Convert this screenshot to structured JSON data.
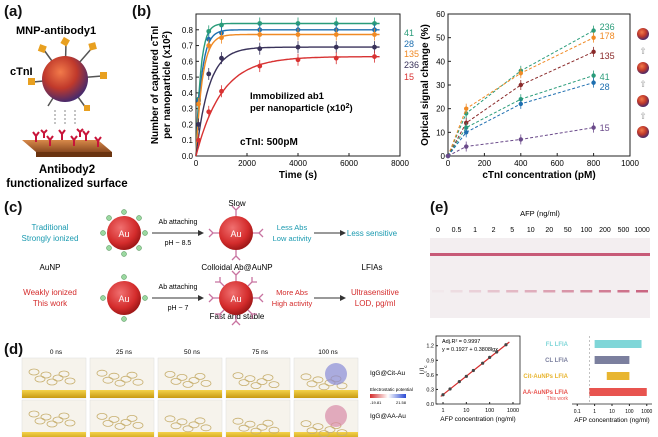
{
  "panel_a": {
    "label": "(a)",
    "nanoparticle_label": "MNP-antibody1",
    "antigen_label": "cTnI",
    "surface_label_line1": "Antibody2",
    "surface_label_line2": "functionalized surface"
  },
  "panel_b": {
    "label": "(b)"
  },
  "panel_c": {
    "label": "(c)",
    "slow": "Slow",
    "fast_and_stable": "Fast and stable",
    "np_label": "Au",
    "row1": {
      "left_line1": "Traditional",
      "left_line2": "Strongly ionized",
      "arrow_line1": "Ab attaching",
      "arrow_line2": "pH ~ 8.5",
      "result_line1": "Less Abs",
      "result_line2": "Low activity",
      "outcome": "Less sensitive"
    },
    "middle": {
      "left": "AuNP",
      "center": "Colloidal Ab@AuNP",
      "right": "LFIAs"
    },
    "row2": {
      "left_line1": "Weakly ionized",
      "left_line2": "This work",
      "arrow_line1": "Ab attaching",
      "arrow_line2": "pH ~ 7",
      "result_line1": "More Abs",
      "result_line2": "High activity",
      "outcome_line1": "Ultrasensitive",
      "outcome_line2": "LOD, pg/ml"
    }
  },
  "panel_d": {
    "label": "(d)",
    "times": [
      "0 ns",
      "25 ns",
      "50 ns",
      "75 ns",
      "100 ns"
    ],
    "row1_label": "IgG@Cit-Au",
    "row2_label": "IgG@AA-Au",
    "colorbar_title": "Electrostatic potential",
    "colorbar_min": "-19.81",
    "colorbar_max": "21.58"
  },
  "panel_e": {
    "label": "(e)",
    "strip_title": "AFP (ng/ml)",
    "strip_concentrations": [
      "0",
      "0.5",
      "1",
      "2",
      "5",
      "10",
      "20",
      "50",
      "100",
      "200",
      "500",
      "1000"
    ],
    "bar_labels": [
      "FL LFIA",
      "CL LFIA",
      "Cit-AuNPs LFIA",
      "AA-AuNPs LFIA"
    ],
    "bar_sublabel": "This work",
    "bar_colors": [
      "#7fd6d8",
      "#7b7f9e",
      "#e8b530",
      "#e8544f"
    ]
  },
  "chart_data": [
    {
      "id": "b-left",
      "type": "line",
      "xlabel": "Time (s)",
      "ylabel_line1": "Number of captured cTnI",
      "ylabel_line2": "per nanoparticle (x10",
      "ylabel_sup": "2",
      "ylabel_end": ")",
      "xlim": [
        0,
        8000
      ],
      "ylim": [
        0,
        0.9
      ],
      "xticks": [
        0,
        2000,
        4000,
        6000,
        8000
      ],
      "yticks": [
        0.0,
        0.1,
        0.2,
        0.3,
        0.4,
        0.5,
        0.6,
        0.7,
        0.8
      ],
      "annotation_line1": "Immobilized ab1",
      "annotation_line2": "per nanoparticle (x10",
      "annotation_sup": "2",
      "annotation_end": ")",
      "condition": "cTnI: 500pM",
      "series": [
        {
          "name": "41",
          "color": "#2a9c7a",
          "plateau": 0.84,
          "k": 0.0055,
          "x": [
            100,
            500,
            1000,
            2500,
            4000,
            5500,
            7000
          ],
          "y": [
            0.36,
            0.79,
            0.83,
            0.84,
            0.84,
            0.84,
            0.84
          ]
        },
        {
          "name": "28",
          "color": "#1e6fb0",
          "plateau": 0.8,
          "k": 0.0045,
          "x": [
            100,
            500,
            1000,
            2500,
            4000,
            5500,
            7000
          ],
          "y": [
            0.35,
            0.74,
            0.78,
            0.8,
            0.8,
            0.8,
            0.8
          ]
        },
        {
          "name": "135",
          "color": "#f08a24",
          "plateau": 0.77,
          "k": 0.004,
          "x": [
            100,
            500,
            1000,
            2500,
            4000,
            5500,
            7000
          ],
          "y": [
            0.33,
            0.7,
            0.75,
            0.77,
            0.77,
            0.77,
            0.77
          ]
        },
        {
          "name": "236",
          "color": "#39325a",
          "plateau": 0.69,
          "k": 0.002,
          "x": [
            100,
            500,
            1000,
            2500,
            4000,
            5500,
            7000
          ],
          "y": [
            0.2,
            0.52,
            0.62,
            0.68,
            0.69,
            0.69,
            0.69
          ]
        },
        {
          "name": "15",
          "color": "#d83232",
          "plateau": 0.63,
          "k": 0.001,
          "x": [
            100,
            500,
            1000,
            2500,
            4000,
            5500,
            7000
          ],
          "y": [
            0.1,
            0.28,
            0.41,
            0.57,
            0.61,
            0.62,
            0.63
          ]
        }
      ]
    },
    {
      "id": "b-right",
      "type": "line",
      "xlabel": "cTnI concentration (pM)",
      "ylabel": "Optical signal change (%)",
      "xlim": [
        0,
        1000
      ],
      "ylim": [
        0,
        60
      ],
      "xticks": [
        0,
        200,
        400,
        600,
        800,
        1000
      ],
      "yticks": [
        0,
        10,
        20,
        30,
        40,
        50,
        60
      ],
      "x": [
        0,
        100,
        400,
        800
      ],
      "series": [
        {
          "name": "236",
          "color": "#2a9c7a",
          "y": [
            0,
            18,
            36,
            53
          ]
        },
        {
          "name": "178",
          "color": "#f08a24",
          "y": [
            0,
            20,
            35,
            50
          ]
        },
        {
          "name": "135",
          "color": "#8a2a2a",
          "y": [
            0,
            14,
            30,
            44
          ]
        },
        {
          "name": "41",
          "color": "#2a9c7a",
          "y": [
            0,
            12,
            24,
            34
          ]
        },
        {
          "name": "28",
          "color": "#1e6fb0",
          "y": [
            0,
            10,
            22,
            31
          ]
        },
        {
          "name": "15",
          "color": "#6a4a8a",
          "y": [
            0,
            4,
            7,
            12
          ]
        }
      ]
    },
    {
      "id": "e-calibration",
      "type": "scatter",
      "xlabel": "AFP concentration (ng/ml)",
      "ylabel": "I₀/Iₗ",
      "ylabel_parts": [
        "I",
        "t",
        "/I",
        "c"
      ],
      "equation_line1": "Adj.R² = 0.9997",
      "equation_line2": "y = 0.1927 + 0.3808lgx",
      "x_scale": "log",
      "xlim": [
        0.5,
        2000
      ],
      "ylim": [
        0,
        1.4
      ],
      "xticks": [
        1,
        10,
        100,
        1000
      ],
      "xtick_labels": [
        "1",
        "10",
        "100",
        "1000"
      ],
      "yticks": [
        0.0,
        0.3,
        0.6,
        0.9,
        1.2
      ],
      "x": [
        1,
        2,
        5,
        10,
        20,
        50,
        100,
        200,
        500
      ],
      "y": [
        0.19,
        0.31,
        0.46,
        0.57,
        0.69,
        0.84,
        0.96,
        1.07,
        1.22
      ]
    },
    {
      "id": "e-lod",
      "type": "bar",
      "orientation": "horizontal",
      "xlabel": "AFP concentration (ng/ml)",
      "x_scale": "log",
      "xticks": [
        0.1,
        1,
        10,
        100,
        1000
      ],
      "xtick_labels": [
        "0.1",
        "1",
        "10",
        "100",
        "1000"
      ],
      "categories": [
        "FL LFIA",
        "CL LFIA",
        "Cit-AuNPs LFIA",
        "AA-AuNPs LFIA"
      ],
      "ranges": [
        [
          1,
          500
        ],
        [
          1,
          100
        ],
        [
          5,
          100
        ],
        [
          0.5,
          1000
        ]
      ]
    }
  ]
}
